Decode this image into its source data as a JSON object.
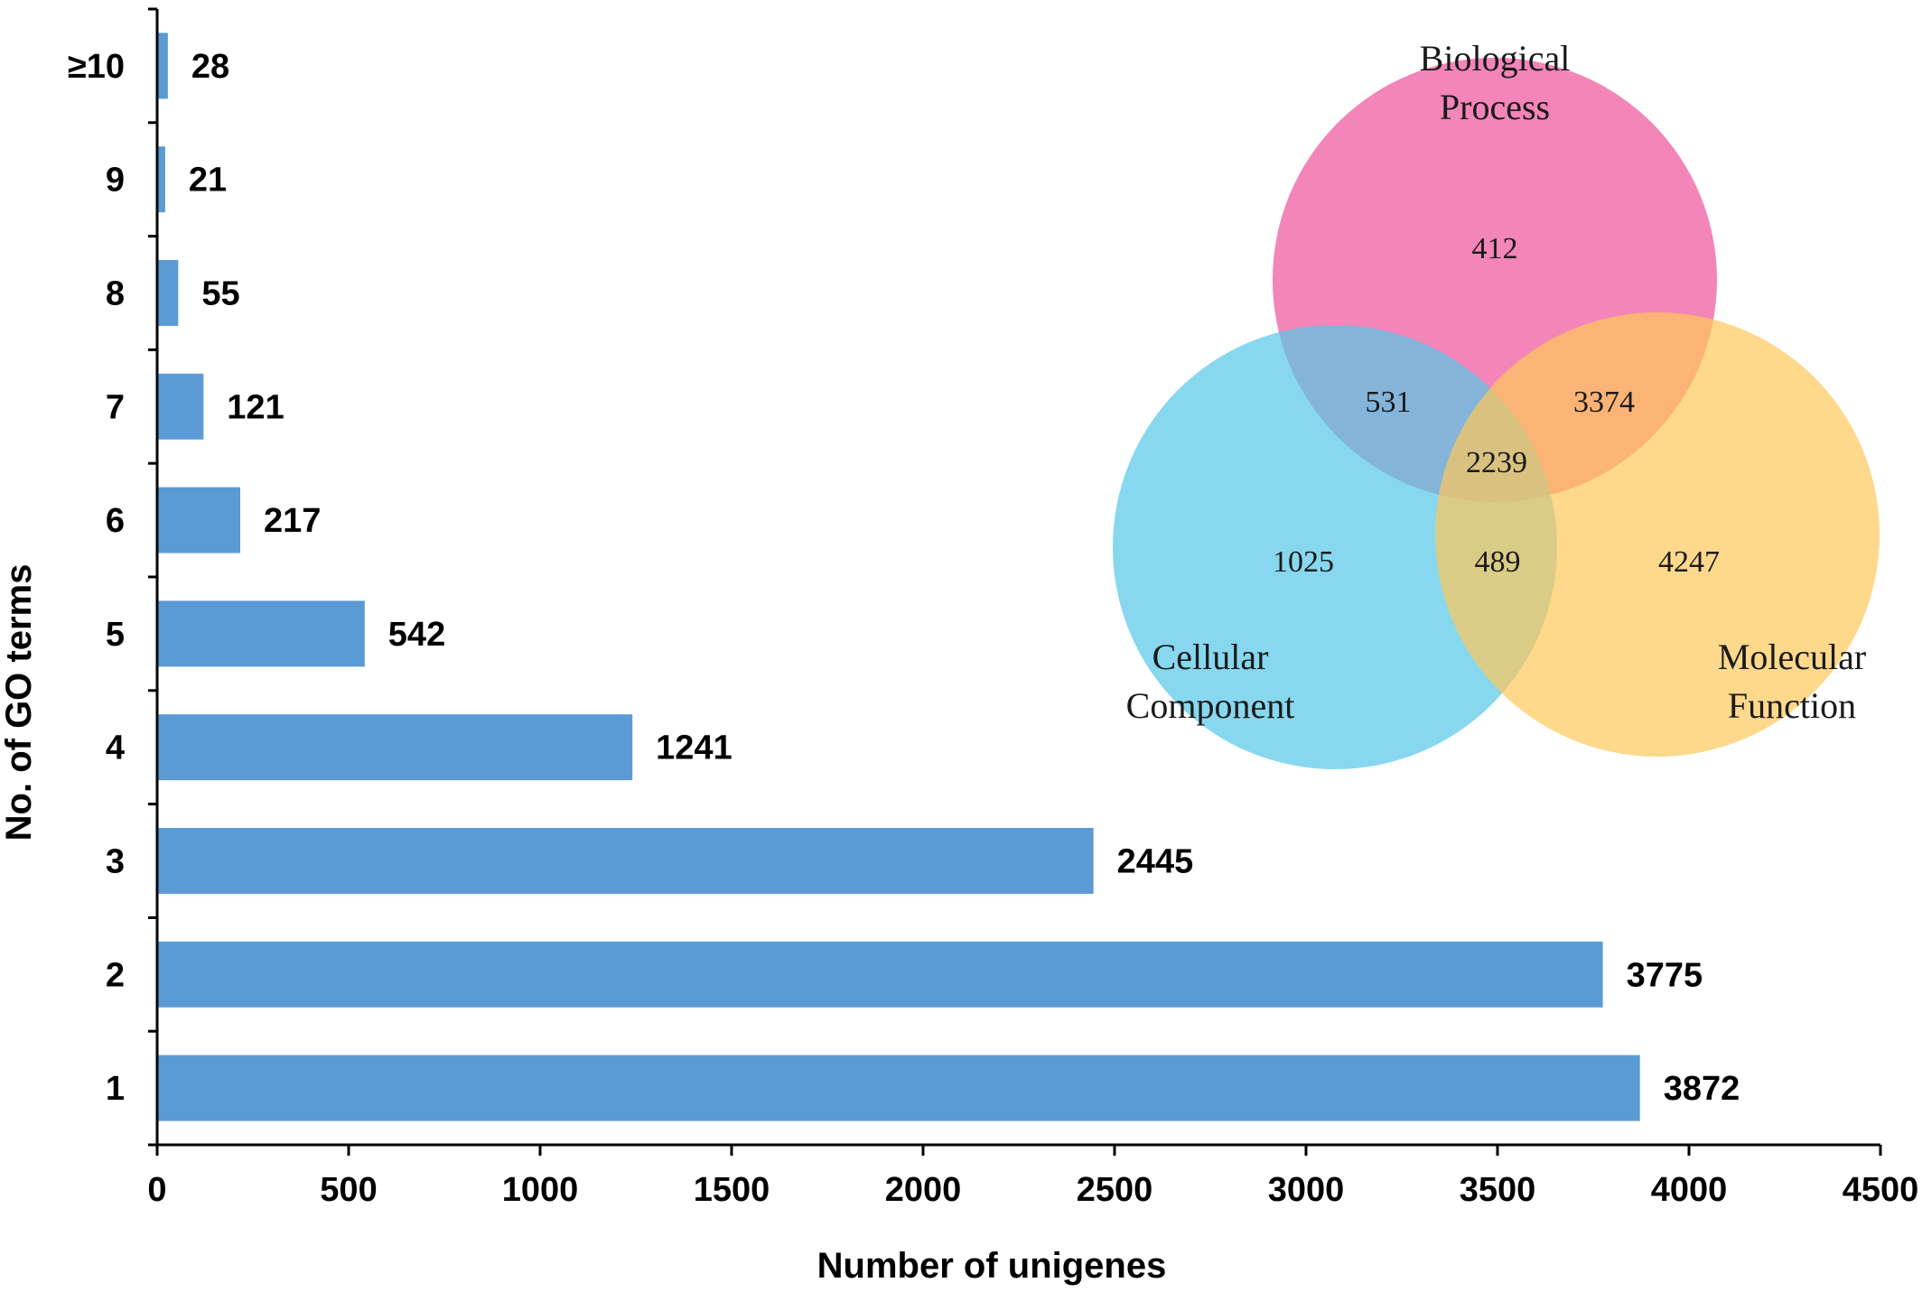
{
  "chart_data": [
    {
      "type": "bar",
      "orientation": "horizontal",
      "categories": [
        "1",
        "2",
        "3",
        "4",
        "5",
        "6",
        "7",
        "8",
        "9",
        "≥10"
      ],
      "values": [
        3872,
        3775,
        2445,
        1241,
        542,
        217,
        121,
        55,
        21,
        28
      ],
      "data_labels": [
        "3872",
        "3775",
        "2445",
        "1241",
        "542",
        "217",
        "121",
        "55",
        "21",
        "28"
      ],
      "xlabel": "Number of unigenes",
      "ylabel": "No. of GO terms",
      "xlim": [
        0,
        4500
      ],
      "xticks": [
        0,
        500,
        1000,
        1500,
        2000,
        2500,
        3000,
        3500,
        4000,
        4500
      ],
      "xtick_labels": [
        "0",
        "500",
        "1000",
        "1500",
        "2000",
        "2500",
        "3000",
        "3500",
        "4000",
        "4500"
      ],
      "bar_color": "#5b9bd5",
      "grid": false,
      "legend": "none"
    },
    {
      "type": "venn",
      "sets": [
        {
          "name": "Biological Process",
          "label_lines": [
            "Biological",
            "Process"
          ],
          "color": "#f067a6"
        },
        {
          "name": "Cellular Component",
          "label_lines": [
            "Cellular",
            "Component"
          ],
          "color": "#54c8e8"
        },
        {
          "name": "Molecular Function",
          "label_lines": [
            "Molecular",
            "Function"
          ],
          "color": "#fdc85a"
        }
      ],
      "regions": {
        "bp_only": "412",
        "cc_only": "1025",
        "mf_only": "4247",
        "bp_cc": "531",
        "bp_mf": "3374",
        "cc_mf": "489",
        "all": "2239"
      }
    }
  ]
}
